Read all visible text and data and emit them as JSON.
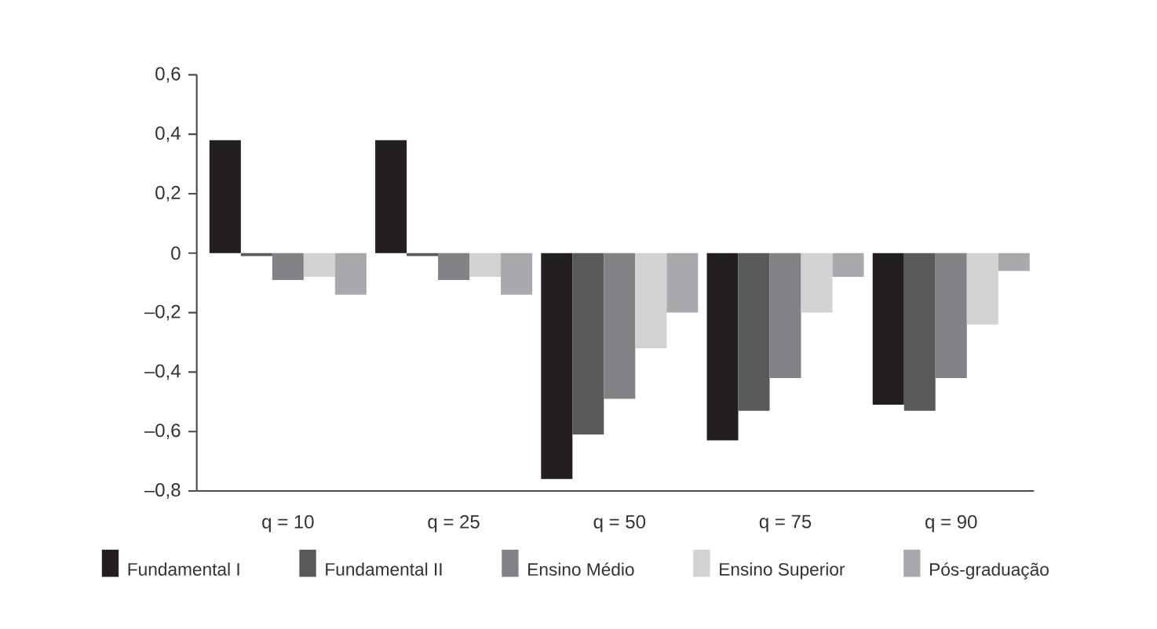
{
  "chart_data": {
    "type": "bar",
    "categories": [
      "q = 10",
      "q = 25",
      "q = 50",
      "q = 75",
      "q = 90"
    ],
    "series": [
      {
        "name": "Fundamental I",
        "color": "#231f20",
        "values": [
          0.38,
          0.38,
          -0.76,
          -0.63,
          -0.51
        ]
      },
      {
        "name": "Fundamental II",
        "color": "#58595b",
        "values": [
          -0.01,
          -0.01,
          -0.61,
          -0.53,
          -0.53
        ]
      },
      {
        "name": "Ensino Médio",
        "color": "#808285",
        "values": [
          -0.09,
          -0.09,
          -0.49,
          -0.42,
          -0.42
        ]
      },
      {
        "name": "Ensino Superior",
        "color": "#d1d2d4",
        "values": [
          -0.08,
          -0.08,
          -0.32,
          -0.2,
          -0.24
        ]
      },
      {
        "name": "Pós-graduação",
        "color": "#a7a9ac",
        "values": [
          -0.14,
          -0.14,
          -0.2,
          -0.08,
          -0.06
        ]
      }
    ],
    "ylim": [
      -0.8,
      0.6
    ],
    "yticks": [
      {
        "value": -0.8,
        "label": "–0,8"
      },
      {
        "value": -0.6,
        "label": "–0,6"
      },
      {
        "value": -0.4,
        "label": "–0,4"
      },
      {
        "value": -0.2,
        "label": "–0,2"
      },
      {
        "value": 0,
        "label": "0"
      },
      {
        "value": 0.2,
        "label": "0,2"
      },
      {
        "value": 0.4,
        "label": "0,4"
      },
      {
        "value": 0.6,
        "label": "0,6"
      }
    ],
    "grid": false,
    "legend": "bottom"
  }
}
